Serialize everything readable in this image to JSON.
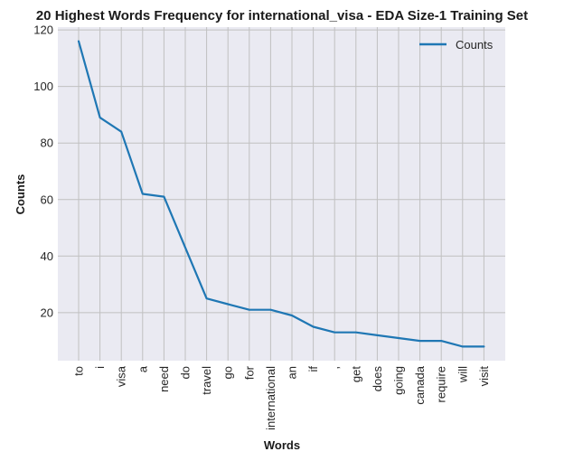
{
  "chart_data": {
    "type": "line",
    "title": "20 Highest Words Frequency for international_visa - EDA Size-1 Training Set",
    "xlabel": "Words",
    "ylabel": "Counts",
    "categories": [
      "to",
      "i",
      "visa",
      "a",
      "need",
      "do",
      "travel",
      "go",
      "for",
      "international",
      "an",
      "if",
      ",",
      "get",
      "does",
      "going",
      "canada",
      "require",
      "will",
      "visit"
    ],
    "series": [
      {
        "name": "Counts",
        "values": [
          116,
          89,
          84,
          62,
          61,
          43,
          25,
          23,
          21,
          21,
          19,
          15,
          13,
          13,
          12,
          11,
          10,
          10,
          8,
          8
        ]
      }
    ],
    "ylim": [
      3,
      121
    ],
    "yticks": [
      20,
      40,
      60,
      80,
      100,
      120
    ],
    "grid": true,
    "legend_position": "top-right",
    "colors": {
      "line": "#1f77b4",
      "plot_background": "#eaeaf2",
      "grid": "#c0c0c0"
    }
  }
}
